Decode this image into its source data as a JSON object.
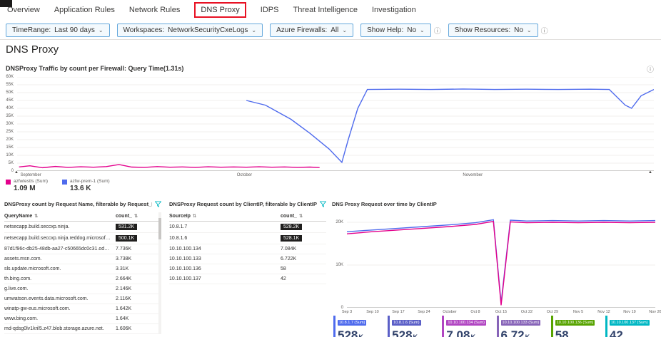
{
  "tabs": {
    "items": [
      {
        "label": "Overview"
      },
      {
        "label": "Application Rules"
      },
      {
        "label": "Network Rules"
      },
      {
        "label": "DNS Proxy",
        "active": true
      },
      {
        "label": "IDPS"
      },
      {
        "label": "Threat Intelligence"
      },
      {
        "label": "Investigation"
      }
    ]
  },
  "filters": [
    {
      "label": "TimeRange:",
      "value": "Last 90 days",
      "info": false
    },
    {
      "label": "Workspaces:",
      "value": "NetworkSecurityCxeLogs",
      "info": false
    },
    {
      "label": "Azure Firewalls:",
      "value": "All",
      "info": false
    },
    {
      "label": "Show Help:",
      "value": "No",
      "info": true
    },
    {
      "label": "Show Resources:",
      "value": "No",
      "info": true
    }
  ],
  "page": {
    "title": "DNS Proxy"
  },
  "icons": {
    "chevron": "⌄",
    "info": "ⓘ",
    "sort": "⇅",
    "brush": "▲"
  },
  "colors": {
    "magenta": "#e3008c",
    "blue": "#4f6bed",
    "funnel": "#00b7c3",
    "badge_bg": "#201f1e",
    "tile_value": "#32436b"
  },
  "chart_data": [
    {
      "id": "traffic_by_firewall",
      "type": "line",
      "title": "DNSProxy Traffic by count per Firewall: Query Time(1.31s)",
      "ylim": [
        0,
        60
      ],
      "grid": true,
      "legend_position": "bottom-left",
      "yticks": [
        {
          "v": 60,
          "label": "60K"
        },
        {
          "v": 55,
          "label": "55K"
        },
        {
          "v": 50,
          "label": "50K"
        },
        {
          "v": 45,
          "label": "45K"
        },
        {
          "v": 40,
          "label": "40K"
        },
        {
          "v": 35,
          "label": "35K"
        },
        {
          "v": 30,
          "label": "30K"
        },
        {
          "v": 25,
          "label": "25K"
        },
        {
          "v": 20,
          "label": "20K"
        },
        {
          "v": 15,
          "label": "15K"
        },
        {
          "v": 10,
          "label": "10K"
        },
        {
          "v": 5,
          "label": "5K"
        },
        {
          "v": 0,
          "label": "0"
        }
      ],
      "x_labels": [
        {
          "text": "September",
          "pos": 0.5
        },
        {
          "text": "October",
          "pos": 34.5
        },
        {
          "text": "November",
          "pos": 70
        }
      ],
      "series": [
        {
          "name": "azfw-prem-1 (Sum)",
          "total": "13.6 K",
          "color": "#4f6bed",
          "points": [
            [
              36,
              45
            ],
            [
              39,
              42
            ],
            [
              43,
              33
            ],
            [
              46,
              24
            ],
            [
              49,
              14
            ],
            [
              51,
              5.5
            ],
            [
              52,
              20
            ],
            [
              53.5,
              40
            ],
            [
              55,
              52
            ],
            [
              60,
              52.2
            ],
            [
              65,
              52
            ],
            [
              70,
              52.3
            ],
            [
              75,
              52
            ],
            [
              80,
              52.2
            ],
            [
              85,
              52
            ],
            [
              90,
              52.2
            ],
            [
              93,
              52
            ],
            [
              95.5,
              42
            ],
            [
              96.5,
              40
            ],
            [
              98,
              48
            ],
            [
              100,
              52
            ]
          ]
        },
        {
          "name": "azfwtestls (Sum)",
          "total": "1.09 M",
          "color": "#e3008c",
          "points": [
            [
              0.3,
              2.6
            ],
            [
              2,
              3.3
            ],
            [
              4,
              2.1
            ],
            [
              6,
              2.9
            ],
            [
              8,
              2.3
            ],
            [
              10,
              2.7
            ],
            [
              12,
              2.4
            ],
            [
              14,
              2.8
            ],
            [
              16,
              4.1
            ],
            [
              18,
              2.5
            ],
            [
              20,
              2.3
            ],
            [
              22,
              2.8
            ],
            [
              24,
              2.4
            ],
            [
              26,
              2.6
            ],
            [
              28,
              2.3
            ],
            [
              30,
              2.7
            ],
            [
              32,
              2.4
            ],
            [
              34,
              2.6
            ],
            [
              36,
              2.4
            ],
            [
              38,
              2.7
            ],
            [
              40,
              2.4
            ],
            [
              42,
              2.6
            ],
            [
              44,
              2.3
            ],
            [
              46,
              2.5
            ],
            [
              47.5,
              2.2
            ]
          ]
        }
      ],
      "legend_order": [
        1,
        0
      ]
    },
    {
      "id": "request_over_time_by_clientip",
      "type": "line",
      "title": "DNS Proxy Request over time by ClientIP",
      "ylim": [
        0,
        22
      ],
      "grid": true,
      "yticks": [
        {
          "v": 20,
          "label": "20K"
        },
        {
          "v": 10,
          "label": "10K"
        },
        {
          "v": 0,
          "label": "0"
        }
      ],
      "x_labels": [
        "Sep 3",
        "Sep 10",
        "Sep 17",
        "Sep 24",
        "October",
        "Oct 8",
        "Oct 15",
        "Oct 22",
        "Oct 29",
        "Nov 5",
        "Nov 12",
        "Nov 19",
        "Nov 26"
      ],
      "series": [
        {
          "name": "10.8.1.7",
          "color": "#4f6bed",
          "points": [
            [
              0,
              17.8
            ],
            [
              8.3,
              18.2
            ],
            [
              16.7,
              18.6
            ],
            [
              25,
              19
            ],
            [
              33.3,
              19.4
            ],
            [
              41.7,
              19.9
            ],
            [
              45,
              20.3
            ],
            [
              47.5,
              20.6
            ],
            [
              50,
              1.2
            ],
            [
              53,
              20.5
            ],
            [
              58.3,
              20.3
            ],
            [
              66.7,
              20.4
            ],
            [
              75,
              20.3
            ],
            [
              83.3,
              20.4
            ],
            [
              91.7,
              20.3
            ],
            [
              100,
              20.4
            ]
          ]
        },
        {
          "name": "10.8.1.6",
          "color": "#e3008c",
          "points": [
            [
              0,
              17.3
            ],
            [
              8.3,
              17.8
            ],
            [
              16.7,
              18.2
            ],
            [
              25,
              18.6
            ],
            [
              33.3,
              19
            ],
            [
              41.7,
              19.5
            ],
            [
              45,
              19.9
            ],
            [
              47.5,
              20.2
            ],
            [
              50,
              0.6
            ],
            [
              53,
              20.1
            ],
            [
              58.3,
              19.9
            ],
            [
              66.7,
              20
            ],
            [
              75,
              19.9
            ],
            [
              83.3,
              20
            ],
            [
              91.7,
              19.9
            ],
            [
              100,
              20
            ]
          ]
        }
      ]
    }
  ],
  "tables": [
    {
      "title": "DNSProxy count by Request Name, filterable by Request_Name",
      "columns": [
        "QueryName",
        "count_"
      ],
      "has_scrollbar": true,
      "rows": [
        {
          "name": "netsecapp.build.seccxp.ninja.",
          "count": "531.2K",
          "highlight": true
        },
        {
          "name": "netsecapp.build.seccxp.ninja.reddog.microsoft.com.",
          "count": "500.1K",
          "highlight": true
        },
        {
          "name": "87d1f96c-db25-48db-aa27-c50665dc0c31.ods.opinsights...",
          "count": "7.736K",
          "highlight": false
        },
        {
          "name": "assets.msn.com.",
          "count": "3.738K",
          "highlight": false
        },
        {
          "name": "sls.update.microsoft.com.",
          "count": "3.31K",
          "highlight": false
        },
        {
          "name": "th.bing.com.",
          "count": "2.664K",
          "highlight": false
        },
        {
          "name": "g.live.com.",
          "count": "2.146K",
          "highlight": false
        },
        {
          "name": "umwatson.events.data.microsoft.com.",
          "count": "2.116K",
          "highlight": false
        },
        {
          "name": "winatp-gw-eus.microsoft.com.",
          "count": "1.642K",
          "highlight": false
        },
        {
          "name": "www.bing.com.",
          "count": "1.64K",
          "highlight": false
        },
        {
          "name": "md-qdsg0lv1kril5.z47.blob.storage.azure.net.",
          "count": "1.606K",
          "highlight": false
        }
      ]
    },
    {
      "title": "DNSProxy Request count by ClientIP, filterable by ClientIP",
      "columns": [
        "SourceIp",
        "count_"
      ],
      "has_scrollbar": false,
      "rows": [
        {
          "name": "10.8.1.7",
          "count": "528.2K",
          "highlight": true
        },
        {
          "name": "10.8.1.6",
          "count": "528.1K",
          "highlight": true
        },
        {
          "name": "10.10.100.134",
          "count": "7.084K",
          "highlight": false
        },
        {
          "name": "10.10.100.133",
          "count": "6.722K",
          "highlight": false
        },
        {
          "name": "10.10.100.136",
          "count": "58",
          "highlight": false
        },
        {
          "name": "10.10.100.137",
          "count": "42",
          "highlight": false
        }
      ]
    }
  ],
  "tiles": [
    {
      "label": "10.8.1.7 (Sum)",
      "value": "528",
      "suffix": "K",
      "color": "#4f6bed"
    },
    {
      "label": "10.8.1.6 (Sum)",
      "value": "528",
      "suffix": "K",
      "color": "#5b5fc7"
    },
    {
      "label": "10.10.100.134 (Sum)",
      "value": "7.08",
      "suffix": "K",
      "color": "#b146c2"
    },
    {
      "label": "10.10.100.133 (Sum)",
      "value": "6.72",
      "suffix": "K",
      "color": "#8764b8"
    },
    {
      "label": "10.10.100.136 (Sum)",
      "value": "58",
      "suffix": "",
      "color": "#57a300"
    },
    {
      "label": "10.10.100.137 (Sum)",
      "value": "42",
      "suffix": "",
      "color": "#00b7c3"
    }
  ]
}
